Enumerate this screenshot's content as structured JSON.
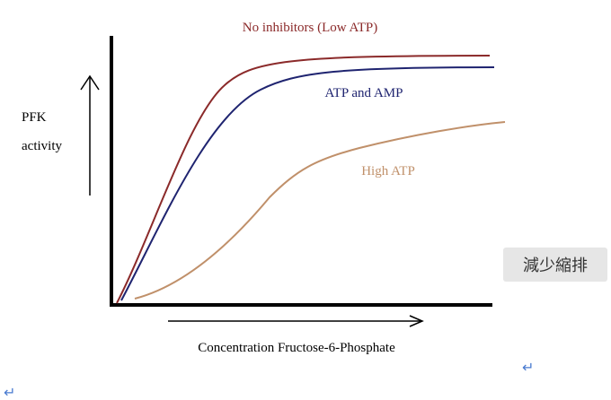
{
  "figure": {
    "curves": [
      {
        "label": "No inhibitors (Low ATP)"
      },
      {
        "label": "ATP and AMP"
      },
      {
        "label": "High ATP"
      }
    ],
    "y_axis": {
      "lines": [
        "PFK",
        "activity"
      ]
    },
    "x_axis": {
      "label": "Concentration Fructose-6-Phosphate"
    }
  },
  "toolbar": {
    "button": "減少縮排"
  },
  "paragraph_marks": [
    "↵",
    "↵"
  ]
}
